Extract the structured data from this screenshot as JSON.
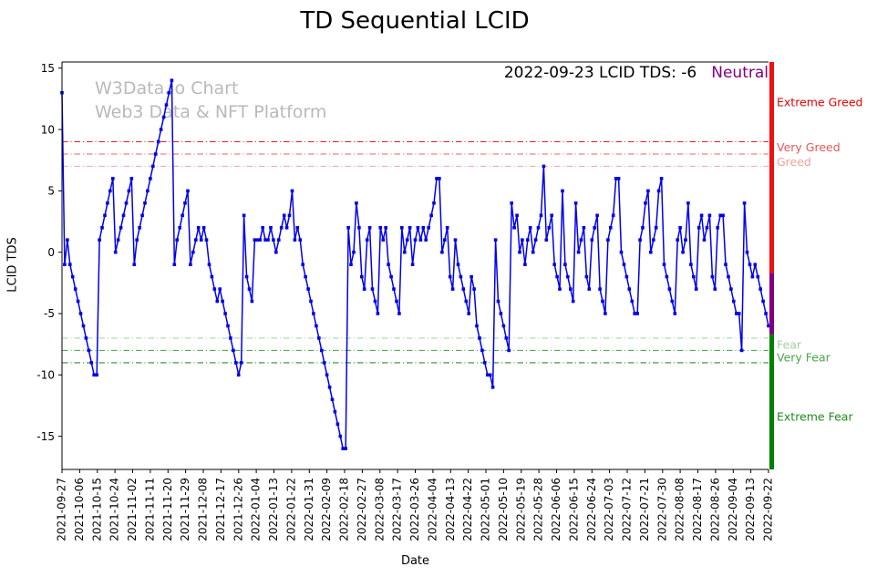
{
  "title": "TD Sequential LCID",
  "watermark": {
    "line1": "W3Data.io Chart",
    "line2": "Web3 Data & NFT Platform"
  },
  "annotation": {
    "text": "2022-09-23 LCID TDS: -6",
    "status": "Neutral",
    "status_color": "#800080"
  },
  "chart_data": {
    "type": "line",
    "title": "TD Sequential LCID",
    "xlabel": "Date",
    "ylabel": "LCID TDS",
    "ylim": [
      -17.7,
      15.5
    ],
    "y_ticks": [
      15,
      10,
      5,
      0,
      -5,
      -10,
      -15
    ],
    "x_tick_labels": [
      "2021-09-27",
      "2021-10-06",
      "2021-10-15",
      "2021-10-24",
      "2021-11-02",
      "2021-11-11",
      "2021-11-20",
      "2021-11-29",
      "2021-12-08",
      "2021-12-17",
      "2021-12-26",
      "2022-01-04",
      "2022-01-13",
      "2022-01-22",
      "2022-01-31",
      "2022-02-09",
      "2022-02-18",
      "2022-02-27",
      "2022-03-08",
      "2022-03-17",
      "2022-03-26",
      "2022-04-04",
      "2022-04-13",
      "2022-04-22",
      "2022-05-01",
      "2022-05-10",
      "2022-05-19",
      "2022-05-28",
      "2022-06-06",
      "2022-06-15",
      "2022-06-24",
      "2022-07-03",
      "2022-07-12",
      "2022-07-21",
      "2022-07-30",
      "2022-08-08",
      "2022-08-17",
      "2022-08-26",
      "2022-09-04",
      "2022-09-13",
      "2022-09-22"
    ],
    "series": [
      {
        "name": "LCID TDS",
        "color": "#0000ee",
        "marker": "square",
        "values": [
          13,
          -1,
          1,
          -1,
          -2,
          -3,
          -4,
          -5,
          -6,
          -7,
          -8,
          -9,
          -10,
          -10,
          1,
          2,
          3,
          4,
          5,
          6,
          0,
          1,
          2,
          3,
          4,
          5,
          6,
          -1,
          1,
          2,
          3,
          4,
          5,
          6,
          7,
          8,
          9,
          10,
          11,
          12,
          13,
          14,
          -1,
          1,
          2,
          3,
          4,
          5,
          -1,
          0,
          1,
          2,
          1,
          2,
          1,
          -1,
          -2,
          -3,
          -4,
          -3,
          -4,
          -5,
          -6,
          -7,
          -8,
          -9,
          -10,
          -9,
          3,
          -2,
          -3,
          -4,
          1,
          1,
          1,
          2,
          1,
          1,
          2,
          1,
          0,
          1,
          2,
          3,
          2,
          3,
          5,
          1,
          2,
          1,
          -1,
          -2,
          -3,
          -4,
          -5,
          -6,
          -7,
          -8,
          -9,
          -10,
          -11,
          -12,
          -13,
          -14,
          -15,
          -16,
          -16,
          2,
          -1,
          0,
          4,
          2,
          -2,
          -3,
          1,
          2,
          -3,
          -4,
          -5,
          2,
          1,
          2,
          -1,
          -2,
          -3,
          -4,
          -5,
          2,
          0,
          1,
          2,
          -1,
          1,
          2,
          1,
          2,
          1,
          2,
          3,
          4,
          6,
          6,
          0,
          1,
          2,
          -2,
          -3,
          1,
          -1,
          -2,
          -3,
          -4,
          -5,
          -2,
          -3,
          -6,
          -7,
          -8,
          -9,
          -10,
          -10,
          -11,
          1,
          -4,
          -5,
          -6,
          -7,
          -8,
          4,
          2,
          3,
          0,
          1,
          -1,
          1,
          2,
          0,
          1,
          2,
          3,
          7,
          1,
          2,
          3,
          -1,
          -2,
          -3,
          5,
          -1,
          -2,
          -3,
          -4,
          4,
          0,
          1,
          2,
          -2,
          -3,
          1,
          2,
          3,
          -3,
          -4,
          -5,
          1,
          2,
          3,
          6,
          6,
          0,
          -1,
          -2,
          -3,
          -4,
          -5,
          -5,
          1,
          2,
          4,
          5,
          0,
          1,
          2,
          5,
          6,
          -1,
          -2,
          -3,
          -4,
          -5,
          1,
          2,
          0,
          1,
          4,
          -1,
          -2,
          -3,
          2,
          3,
          1,
          2,
          3,
          -2,
          -3,
          2,
          3,
          3,
          -1,
          -2,
          -3,
          -4,
          -5,
          -5,
          -8,
          4,
          0,
          -1,
          -2,
          -1,
          -2,
          -3,
          -4,
          -5,
          -6
        ]
      }
    ],
    "threshold_lines": [
      {
        "value": 9,
        "color": "#e02020"
      },
      {
        "value": 8,
        "color": "#ec6060"
      },
      {
        "value": 7,
        "color": "#f6adad"
      },
      {
        "value": -7,
        "color": "#aed5ae"
      },
      {
        "value": -8,
        "color": "#57ab57"
      },
      {
        "value": -9,
        "color": "#2e8b2e"
      }
    ],
    "zone_labels": [
      {
        "text": "Extreme Greed",
        "value": 12.2,
        "color": "#e60000"
      },
      {
        "text": "Very Greed",
        "value": 8.55,
        "color": "#e85555"
      },
      {
        "text": "Greed",
        "value": 7.35,
        "color": "#f2a0a0"
      },
      {
        "text": "Fear",
        "value": -7.55,
        "color": "#a3cfa3"
      },
      {
        "text": "Very Fear",
        "value": -8.6,
        "color": "#4aa54a"
      },
      {
        "text": "Extreme Fear",
        "value": -13.4,
        "color": "#1e8a1e"
      }
    ],
    "right_bar_zones": [
      {
        "from": 15.5,
        "to": -1.7,
        "color": "#ee1111"
      },
      {
        "from": -1.7,
        "to": -6.7,
        "color": "#800080"
      },
      {
        "from": -6.7,
        "to": -17.7,
        "color": "#008000"
      }
    ]
  }
}
